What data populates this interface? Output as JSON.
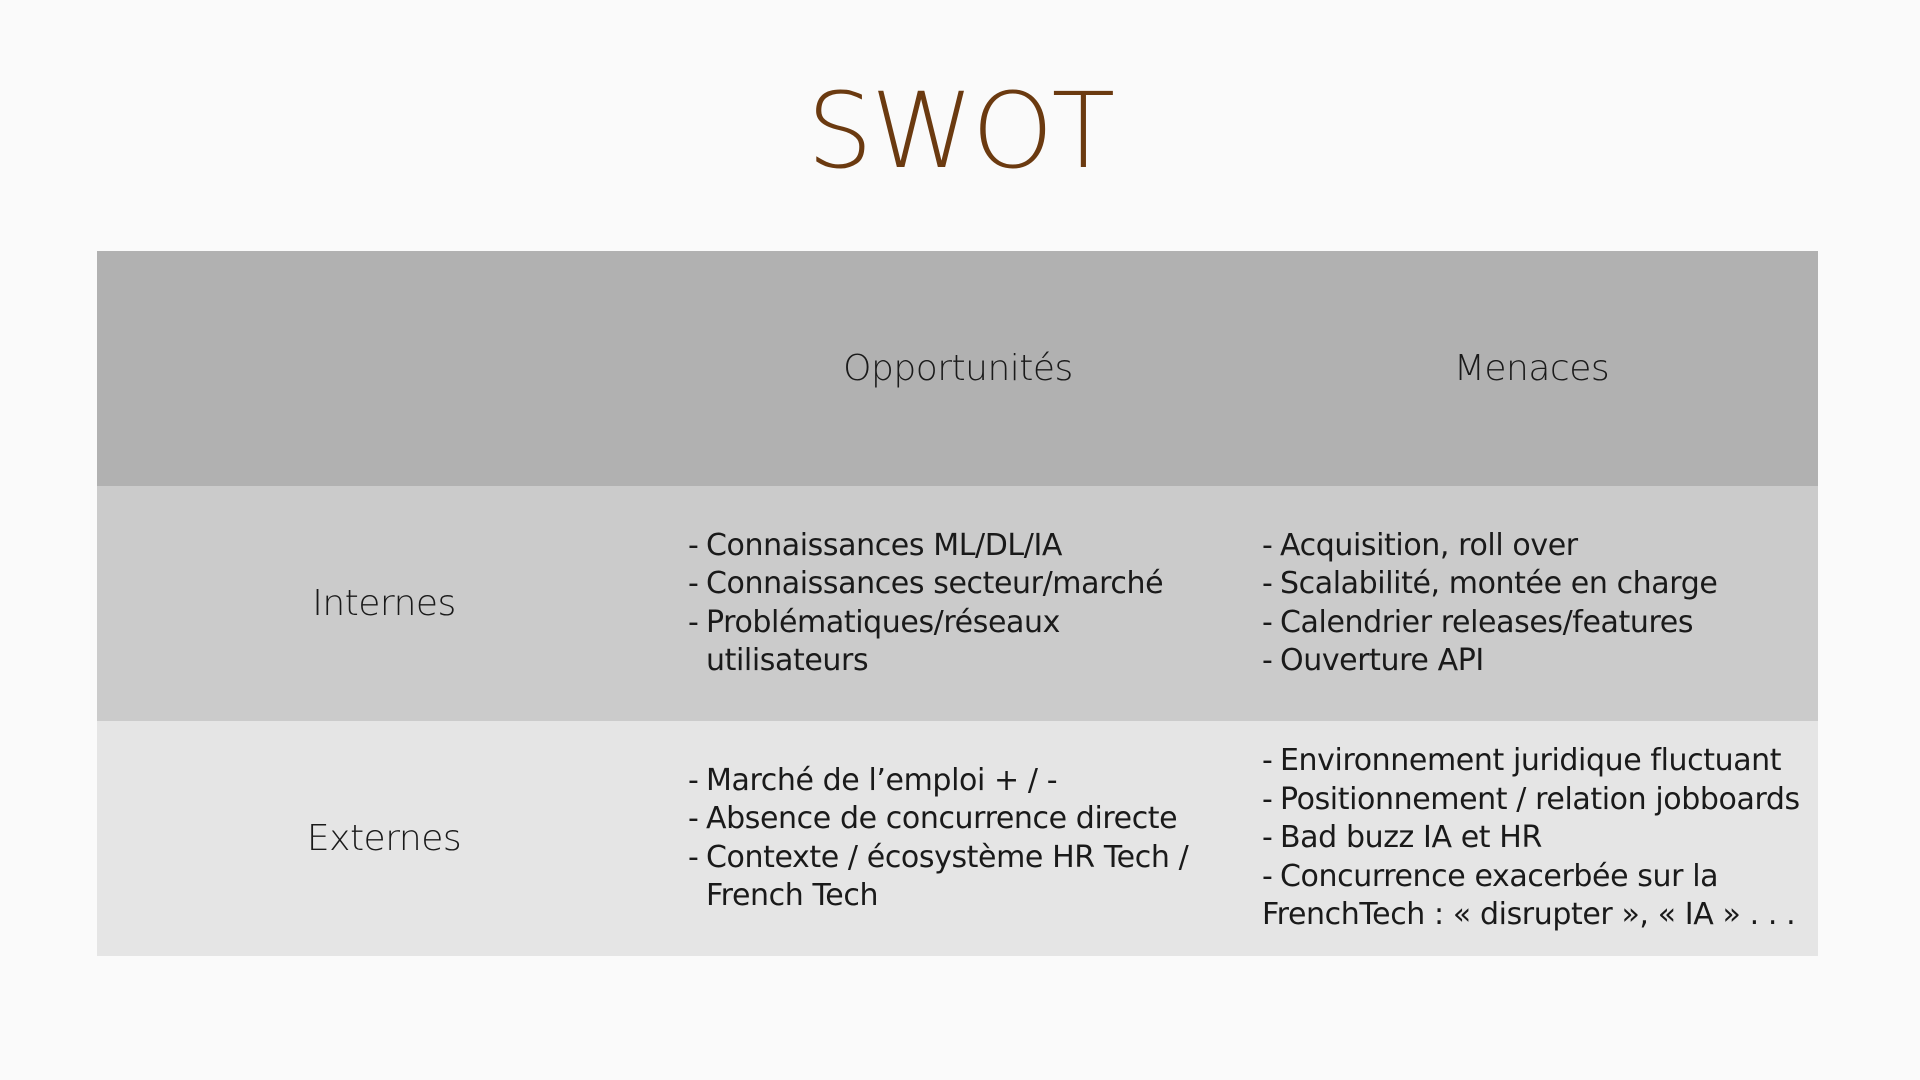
{
  "slide": {
    "title": "SWOT",
    "title_color": "#6b3a10"
  },
  "table": {
    "header": {
      "corner": "",
      "opportunities": "Opportunités",
      "threats": "Menaces"
    },
    "rows": [
      {
        "label": "Internes",
        "opportunities": [
          "Connaissances ML/DL/IA",
          "Connaissances secteur/marché",
          "Problématiques/réseaux utilisateurs"
        ],
        "threats": [
          "Acquisition, roll over",
          "Scalabilité, montée en charge",
          "Calendrier releases/features",
          "Ouverture API"
        ]
      },
      {
        "label": "Externes",
        "opportunities": [
          "Marché de l’emploi + / -",
          "Absence de concurrence directe",
          "Contexte / écosystème HR Tech / French Tech"
        ],
        "threats": [
          "Environnement juridique fluctuant",
          "Positionnement / relation jobboards",
          "Bad buzz IA et HR",
          "Concurrence exacerbée sur la",
          "FrenchTech : « disrupter »,  « IA » . . ."
        ]
      }
    ],
    "colors": {
      "header_bg": "#b1b1b1",
      "internal_bg": "#cbcbcb",
      "external_bg": "#e5e5e5"
    }
  }
}
